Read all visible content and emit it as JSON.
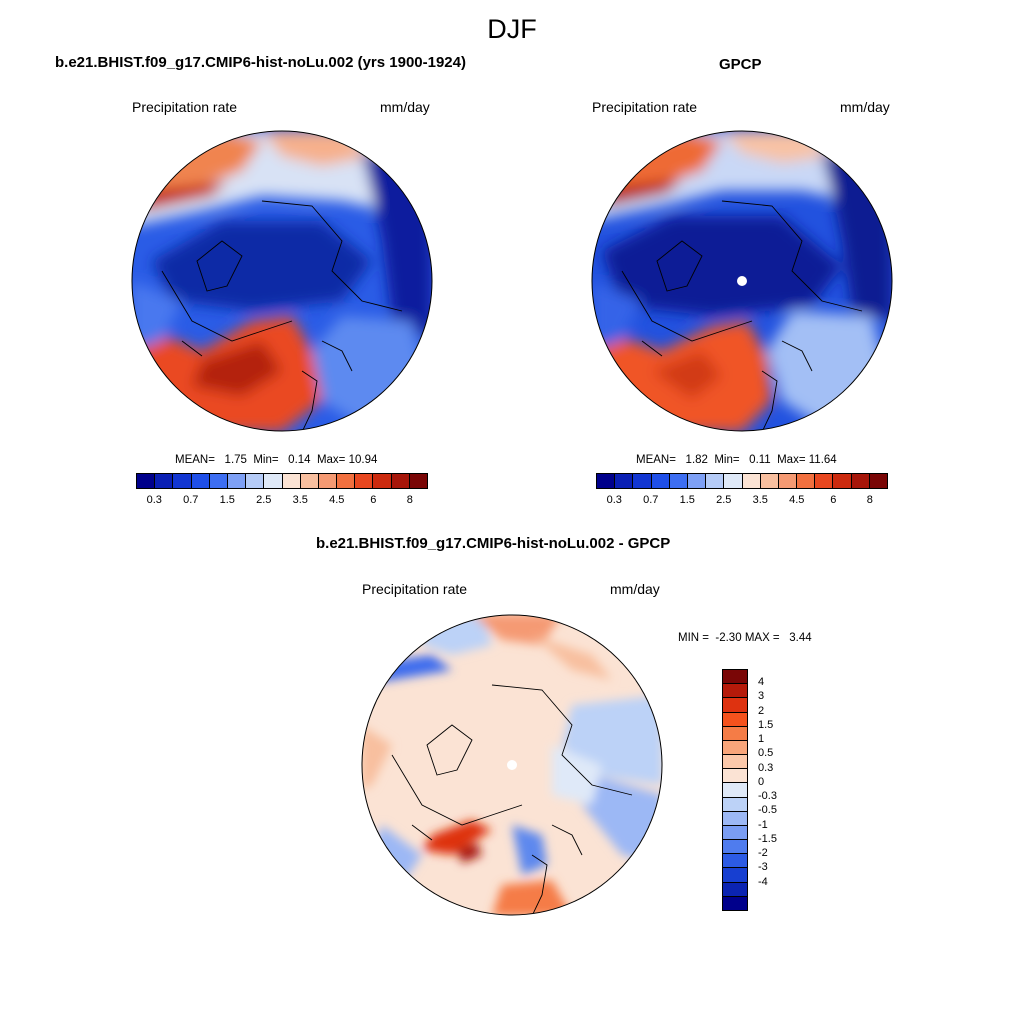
{
  "figure": {
    "title": "DJF"
  },
  "panels": [
    {
      "id": "model",
      "title": "b.e21.BHIST.f09_g17.CMIP6-hist-noLu.002 (yrs 1900-1924)",
      "variable": "Precipitation rate",
      "units": "mm/day",
      "stats": {
        "mean_label": "MEAN=",
        "mean": "1.75",
        "min_label": "Min=",
        "min": "0.14",
        "max_label": "Max=",
        "max": "10.94"
      }
    },
    {
      "id": "obs",
      "title": "GPCP",
      "variable": "Precipitation rate",
      "units": "mm/day",
      "stats": {
        "mean_label": "MEAN=",
        "mean": "1.82",
        "min_label": "Min=",
        "min": "0.11",
        "max_label": "Max=",
        "max": "11.64"
      }
    },
    {
      "id": "diff",
      "title": "b.e21.BHIST.f09_g17.CMIP6-hist-noLu.002 - GPCP",
      "variable": "Precipitation rate",
      "units": "mm/day",
      "stats": {
        "min_label": "MIN =",
        "min": "-2.30",
        "max_label": "MAX =",
        "max": "3.44"
      }
    }
  ],
  "colorbars": {
    "precip": {
      "colors": [
        "#00008b",
        "#0a1fb4",
        "#1236d2",
        "#1f4fe8",
        "#3d6ef2",
        "#7ea0f5",
        "#b5cbf7",
        "#dfe9f8",
        "#fbe3d4",
        "#f8bf9f",
        "#f59a73",
        "#f2703f",
        "#e8471f",
        "#cc2a0e",
        "#a6160a",
        "#7a0606"
      ],
      "tick_labels": [
        "0.3",
        "0.7",
        "1.5",
        "2.5",
        "3.5",
        "4.5",
        "6",
        "8"
      ]
    },
    "diff": {
      "colors": [
        "#7a0606",
        "#b51a0a",
        "#de3210",
        "#f5521d",
        "#f57c46",
        "#f8a57a",
        "#fbc8aa",
        "#fbe3d4",
        "#dfe9f8",
        "#bcd2f7",
        "#9cb8f5",
        "#7a9df3",
        "#4f7cee",
        "#2c5be5",
        "#173fd1",
        "#0b24b2",
        "#00008b"
      ],
      "labels": [
        "4",
        "3",
        "2",
        "1.5",
        "1",
        "0.5",
        "0.3",
        "0",
        "-0.3",
        "-0.5",
        "-1",
        "-1.5",
        "-2",
        "-3",
        "-4"
      ]
    }
  }
}
